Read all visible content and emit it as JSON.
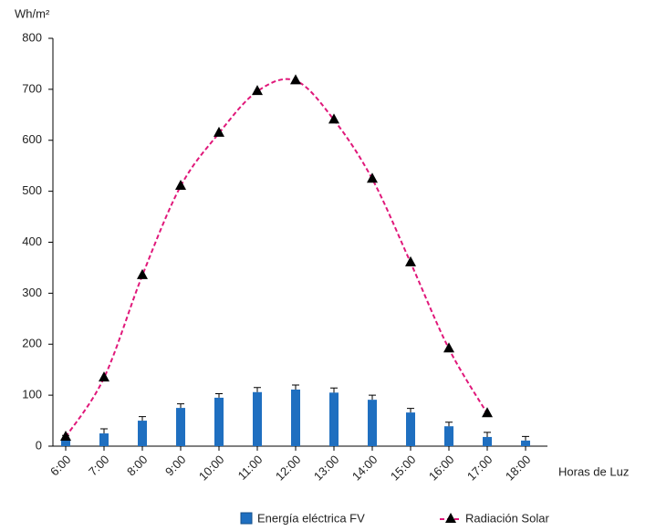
{
  "chart_data": {
    "type": "bar-line",
    "y_label": "Wh/m²",
    "x_label": "Horas de Luz",
    "categories": [
      "6:00",
      "7:00",
      "8:00",
      "9:00",
      "10:00",
      "11:00",
      "12:00",
      "13:00",
      "14:00",
      "15:00",
      "16:00",
      "17:00",
      "18:00"
    ],
    "series": [
      {
        "name": "Energía eléctrica FV",
        "type": "bar",
        "color": "#1f6fc0",
        "values": [
          14,
          25,
          50,
          75,
          95,
          106,
          111,
          105,
          91,
          66,
          39,
          18,
          11
        ],
        "errors": [
          7,
          9,
          8,
          8,
          8,
          9,
          9,
          9,
          9,
          8,
          8,
          9,
          8
        ]
      },
      {
        "name": "Radiación Solar",
        "type": "line",
        "color": "#e0187a",
        "marker_color": "#000000",
        "values": [
          18,
          134,
          335,
          510,
          614,
          696,
          717,
          640,
          524,
          360,
          191,
          64,
          null
        ]
      }
    ],
    "ylim": [
      0,
      800
    ],
    "yticks": [
      0,
      100,
      200,
      300,
      400,
      500,
      600,
      700,
      800
    ]
  }
}
